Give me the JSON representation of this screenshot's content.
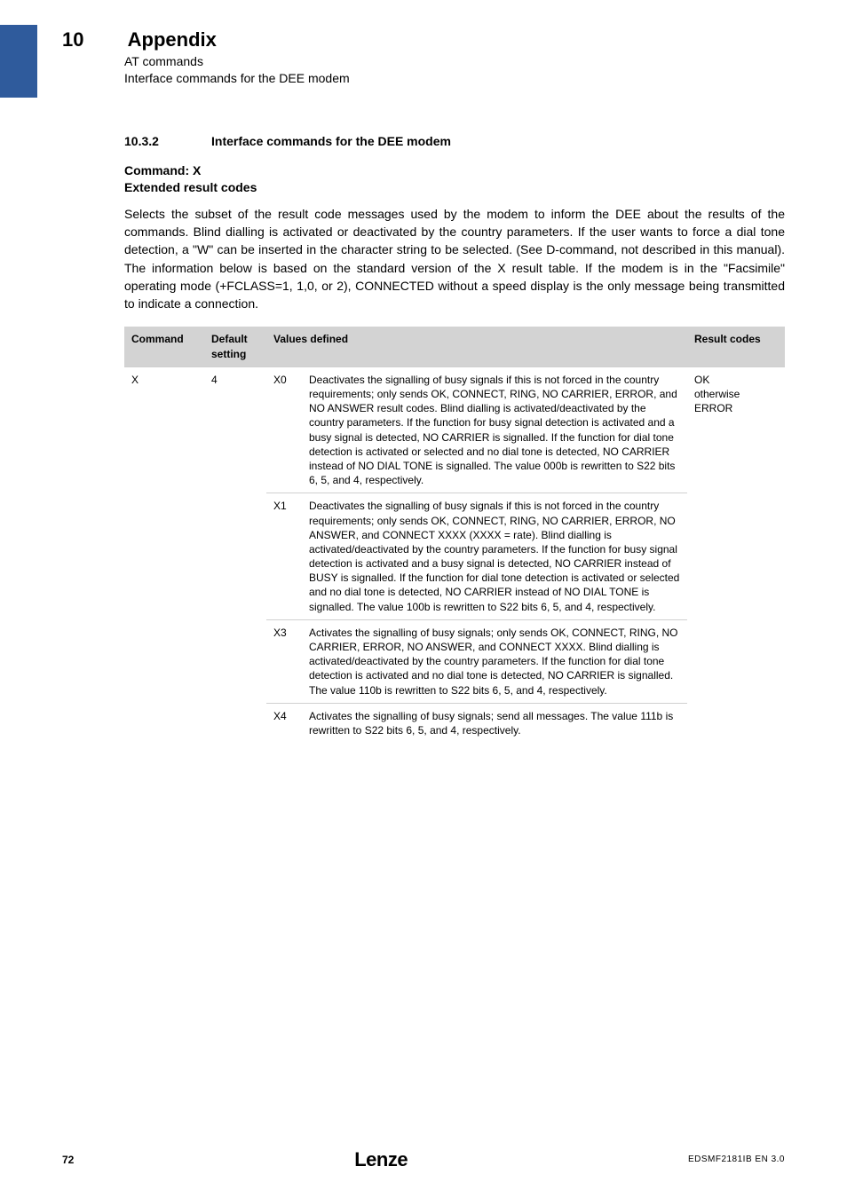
{
  "header": {
    "section_number": "10",
    "section_title": "Appendix",
    "subtitle_line1": "AT commands",
    "subtitle_line2": "Interface commands for the DEE modem"
  },
  "subsection": {
    "number": "10.3.2",
    "title": "Interface commands for the DEE modem"
  },
  "command_block": {
    "line1": "Command: X",
    "line2": "Extended result codes"
  },
  "paragraph": "Selects the subset of the result code messages used by the modem to inform the DEE about the results of the commands. Blind dialling is activated or deactivated by the country parameters. If the user wants to force a dial tone detection, a \"W\" can be inserted in the character string to be selected. (See D-command, not described in this manual). The information below is based on the standard version of the X result table. If the modem is in the \"Facsimile\" operating mode (+FCLASS=1, 1,0, or 2), CONNECTED without a speed display is the only message being transmitted to indicate a connection.",
  "table": {
    "headers": {
      "command": "Command",
      "default_setting": "Default setting",
      "values_defined": "Values defined",
      "result_codes": "Result codes"
    },
    "command": "X",
    "default_setting": "4",
    "result_codes_line1": "OK",
    "result_codes_line2": "otherwise ERROR",
    "rows": [
      {
        "code": "X0",
        "desc": "Deactivates the signalling of busy signals if this is not forced in the country requirements; only sends OK, CONNECT, RING, NO CARRIER, ERROR, and NO ANSWER result codes. Blind dialling is activated/deactivated by the country parameters. If the function for busy signal detection is activated and a busy signal is detected, NO CARRIER is signalled. If the function for dial tone detection is activated or selected and no dial tone is detected, NO CARRIER instead of NO DIAL TONE is signalled. The value 000b is rewritten to S22 bits 6, 5, and 4, respectively."
      },
      {
        "code": "X1",
        "desc": "Deactivates the signalling of busy signals if this is not forced in the country requirements; only sends OK, CONNECT, RING, NO CARRIER, ERROR, NO ANSWER, and CONNECT XXXX (XXXX = rate). Blind dialling is activated/deactivated by the country parameters. If the function for busy signal detection is activated and a busy signal is detected, NO CARRIER instead of BUSY is signalled. If the function for dial tone detection is activated or selected and no dial tone is detected, NO CARRIER instead of NO DIAL TONE is signalled. The value 100b is rewritten to S22 bits 6, 5, and 4, respectively."
      },
      {
        "code": "X3",
        "desc": "Activates the signalling of busy signals; only sends OK, CONNECT, RING, NO CARRIER, ERROR, NO ANSWER, and CONNECT XXXX. Blind dialling is activated/deactivated by the country parameters. If the function for dial tone detection is activated and no dial tone is detected, NO CARRIER is signalled. The value 110b is rewritten to S22 bits 6, 5, and 4, respectively."
      },
      {
        "code": "X4",
        "desc": "Activates the signalling of busy signals; send all messages. The value 111b is rewritten to S22 bits 6, 5, and 4, respectively."
      }
    ]
  },
  "footer": {
    "page": "72",
    "logo": "Lenze",
    "doc_id": "EDSMF2181IB EN 3.0"
  }
}
